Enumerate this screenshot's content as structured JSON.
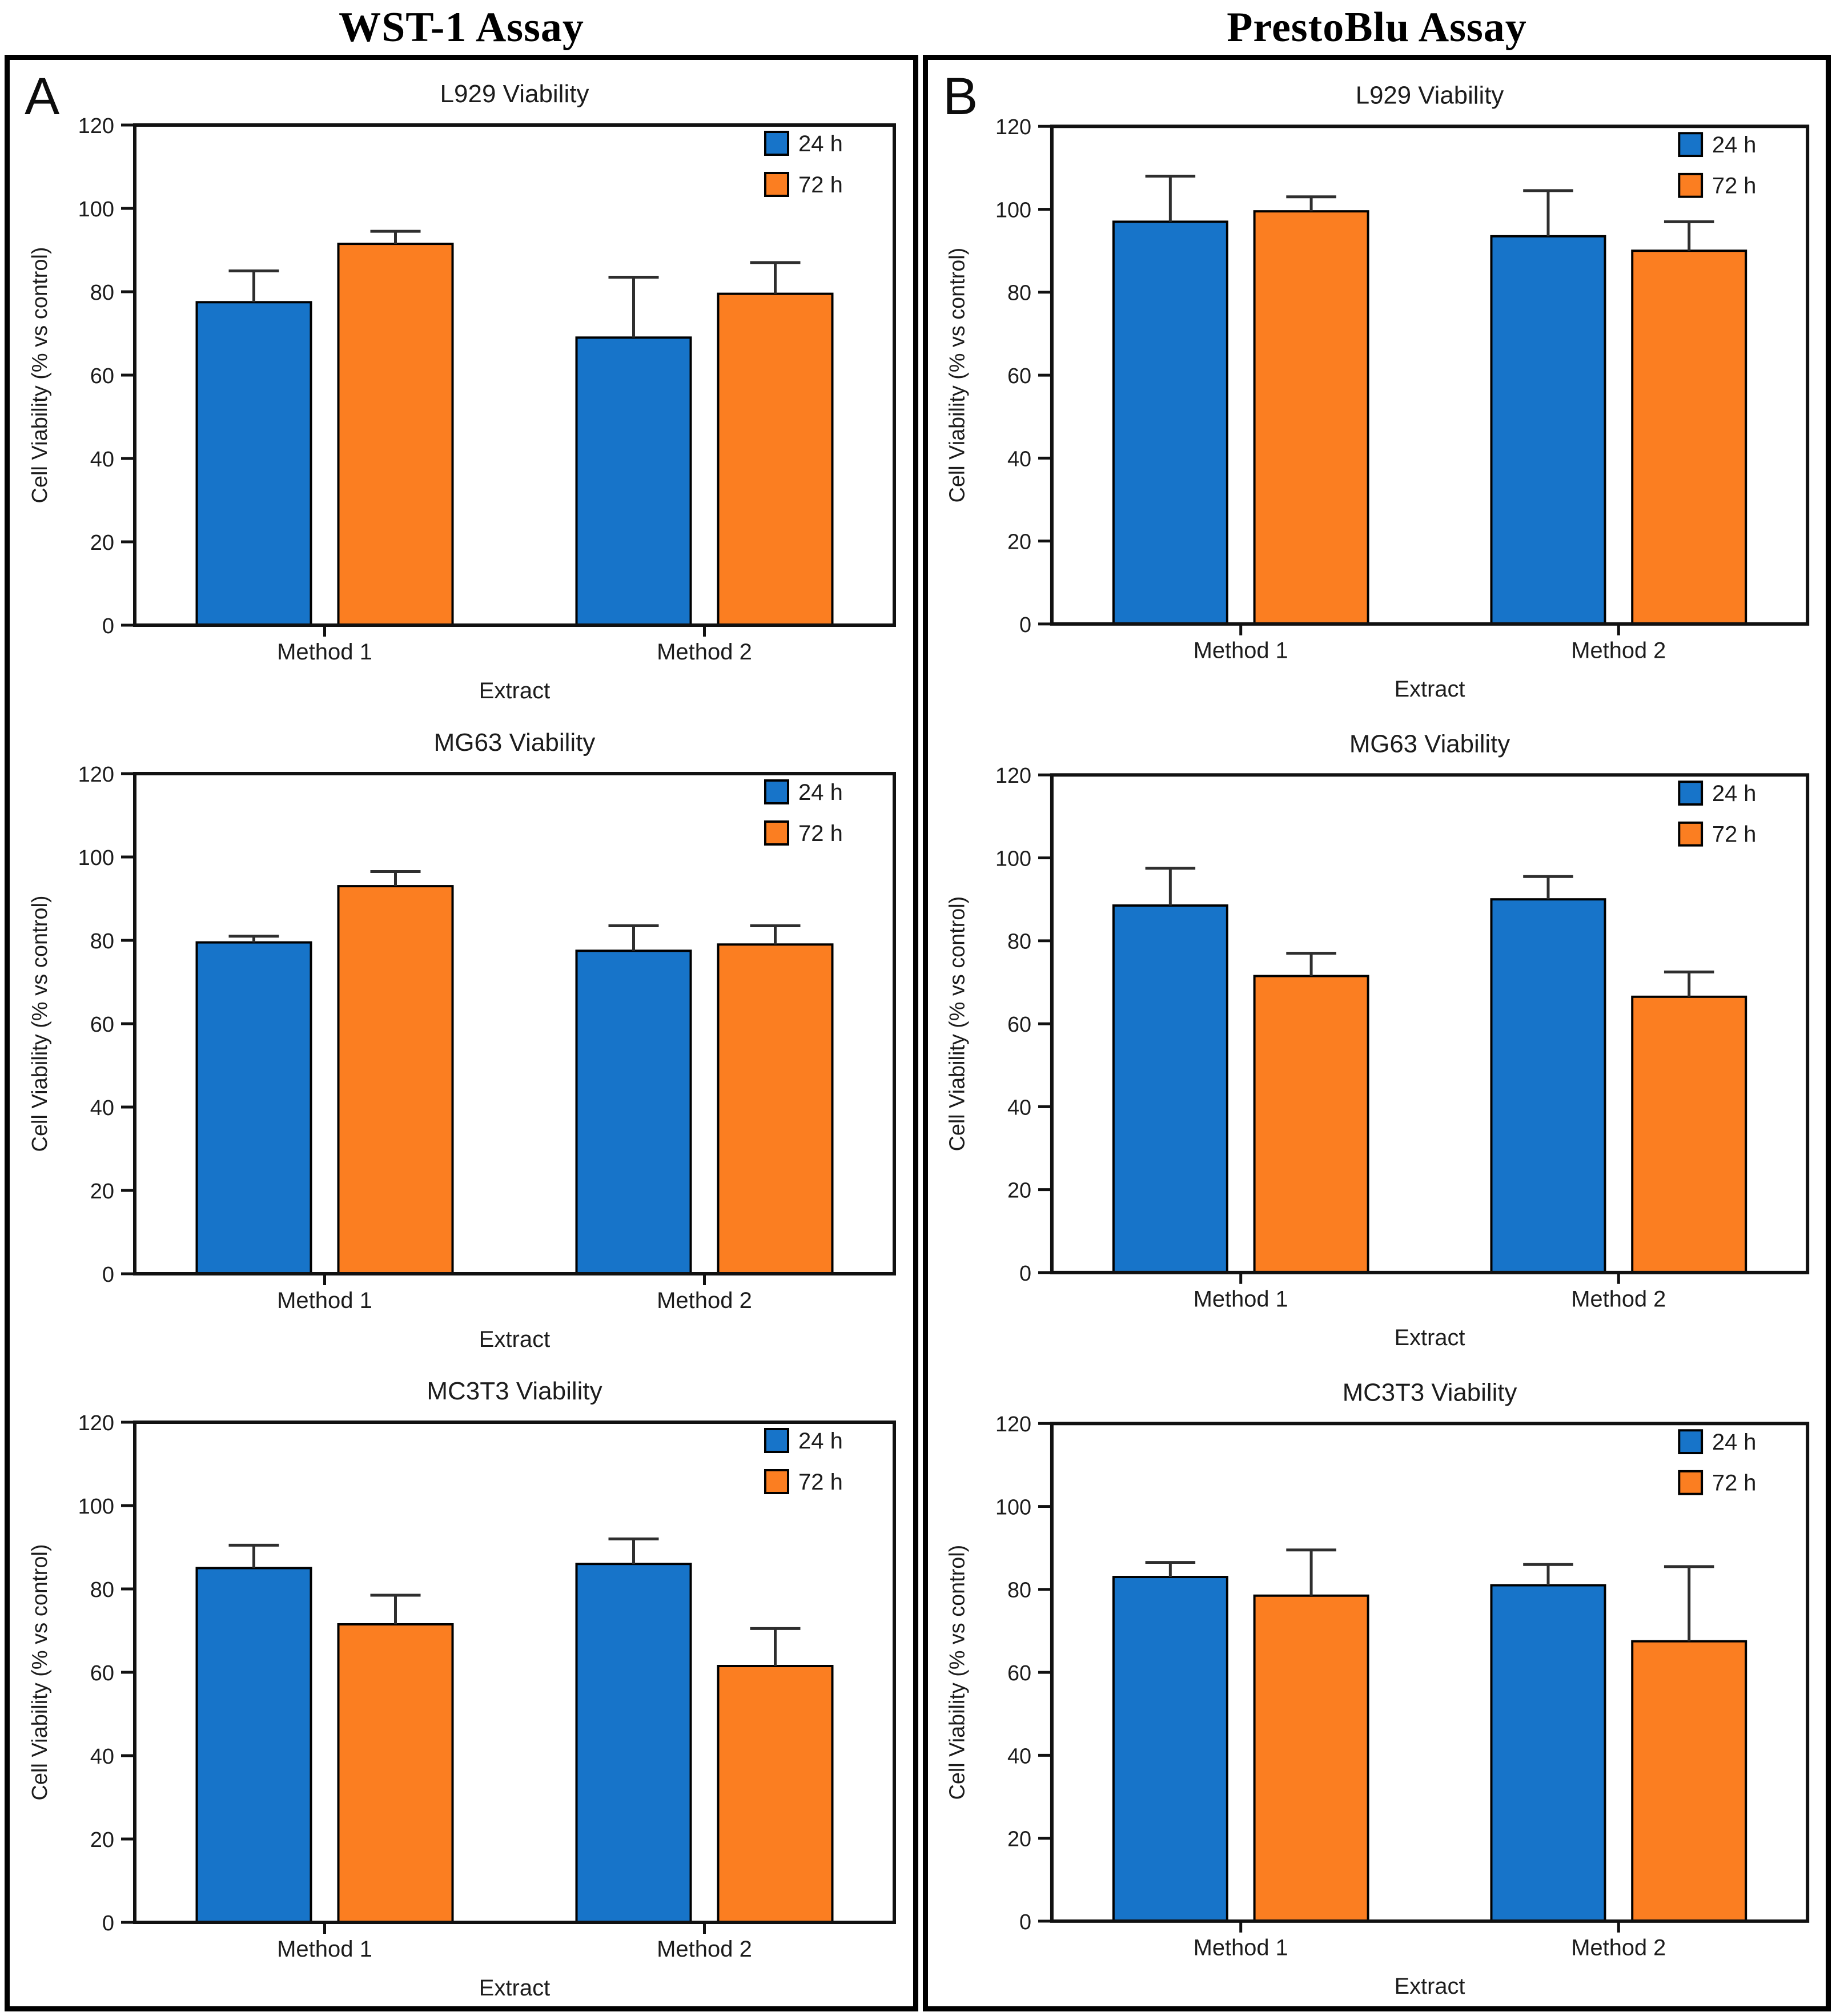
{
  "panels": [
    {
      "letter": "A",
      "title": "WST-1 Assay"
    },
    {
      "letter": "B",
      "title": "PrestoBlu Assay"
    }
  ],
  "legend": {
    "labels": [
      "24 h",
      "72 h"
    ],
    "colors": {
      "h24": "#1774C9",
      "h72": "#FB7E21"
    }
  },
  "chart_data": [
    {
      "panel": "A",
      "type": "bar",
      "title": "L929 Viability",
      "xlabel": "Extract",
      "ylabel": "Cell Viability (% vs control)",
      "ylim": [
        0,
        120
      ],
      "yticks": [
        0,
        20,
        40,
        60,
        80,
        100,
        120
      ],
      "categories": [
        "Method 1",
        "Method 2"
      ],
      "legend_position": "top-right",
      "grid": false,
      "series": [
        {
          "name": "24 h",
          "color": "#1774C9",
          "values": [
            77.5,
            69.0
          ],
          "errors": [
            7.5,
            14.5
          ]
        },
        {
          "name": "72 h",
          "color": "#FB7E21",
          "values": [
            91.5,
            79.5
          ],
          "errors": [
            3.0,
            7.5
          ]
        }
      ]
    },
    {
      "panel": "A",
      "type": "bar",
      "title": "MG63 Viability",
      "xlabel": "Extract",
      "ylabel": "Cell Viability (% vs control)",
      "ylim": [
        0,
        120
      ],
      "yticks": [
        0,
        20,
        40,
        60,
        80,
        100,
        120
      ],
      "categories": [
        "Method 1",
        "Method 2"
      ],
      "legend_position": "top-right",
      "grid": false,
      "series": [
        {
          "name": "24 h",
          "color": "#1774C9",
          "values": [
            79.5,
            77.5
          ],
          "errors": [
            1.5,
            6.0
          ]
        },
        {
          "name": "72 h",
          "color": "#FB7E21",
          "values": [
            93.0,
            79.0
          ],
          "errors": [
            3.5,
            4.5
          ]
        }
      ]
    },
    {
      "panel": "A",
      "type": "bar",
      "title": "MC3T3 Viability",
      "xlabel": "Extract",
      "ylabel": "Cell Viability (% vs control)",
      "ylim": [
        0,
        120
      ],
      "yticks": [
        0,
        20,
        40,
        60,
        80,
        100,
        120
      ],
      "categories": [
        "Method 1",
        "Method 2"
      ],
      "legend_position": "top-right",
      "grid": false,
      "series": [
        {
          "name": "24 h",
          "color": "#1774C9",
          "values": [
            85.0,
            86.0
          ],
          "errors": [
            5.5,
            6.0
          ]
        },
        {
          "name": "72 h",
          "color": "#FB7E21",
          "values": [
            71.5,
            61.5
          ],
          "errors": [
            7.0,
            9.0
          ]
        }
      ]
    },
    {
      "panel": "B",
      "type": "bar",
      "title": "L929 Viability",
      "xlabel": "Extract",
      "ylabel": "Cell Viability (% vs control)",
      "ylim": [
        0,
        120
      ],
      "yticks": [
        0,
        20,
        40,
        60,
        80,
        100,
        120
      ],
      "categories": [
        "Method 1",
        "Method 2"
      ],
      "legend_position": "top-right",
      "grid": false,
      "series": [
        {
          "name": "24 h",
          "color": "#1774C9",
          "values": [
            97.0,
            93.5
          ],
          "errors": [
            11.0,
            11.0
          ]
        },
        {
          "name": "72 h",
          "color": "#FB7E21",
          "values": [
            99.5,
            90.0
          ],
          "errors": [
            3.5,
            7.0
          ]
        }
      ]
    },
    {
      "panel": "B",
      "type": "bar",
      "title": "MG63 Viability",
      "xlabel": "Extract",
      "ylabel": "Cell Viability (% vs control)",
      "ylim": [
        0,
        120
      ],
      "yticks": [
        0,
        20,
        40,
        60,
        80,
        100,
        120
      ],
      "categories": [
        "Method 1",
        "Method 2"
      ],
      "legend_position": "top-right",
      "grid": false,
      "series": [
        {
          "name": "24 h",
          "color": "#1774C9",
          "values": [
            88.5,
            90.0
          ],
          "errors": [
            9.0,
            5.5
          ]
        },
        {
          "name": "72 h",
          "color": "#FB7E21",
          "values": [
            71.5,
            66.5
          ],
          "errors": [
            5.5,
            6.0
          ]
        }
      ]
    },
    {
      "panel": "B",
      "type": "bar",
      "title": "MC3T3 Viability",
      "xlabel": "Extract",
      "ylabel": "Cell Viability (% vs control)",
      "ylim": [
        0,
        120
      ],
      "yticks": [
        0,
        20,
        40,
        60,
        80,
        100,
        120
      ],
      "categories": [
        "Method 1",
        "Method 2"
      ],
      "legend_position": "top-right",
      "grid": false,
      "series": [
        {
          "name": "24 h",
          "color": "#1774C9",
          "values": [
            83.0,
            81.0
          ],
          "errors": [
            3.5,
            5.0
          ]
        },
        {
          "name": "72 h",
          "color": "#FB7E21",
          "values": [
            78.5,
            67.5
          ],
          "errors": [
            11.0,
            18.0
          ]
        }
      ]
    }
  ]
}
